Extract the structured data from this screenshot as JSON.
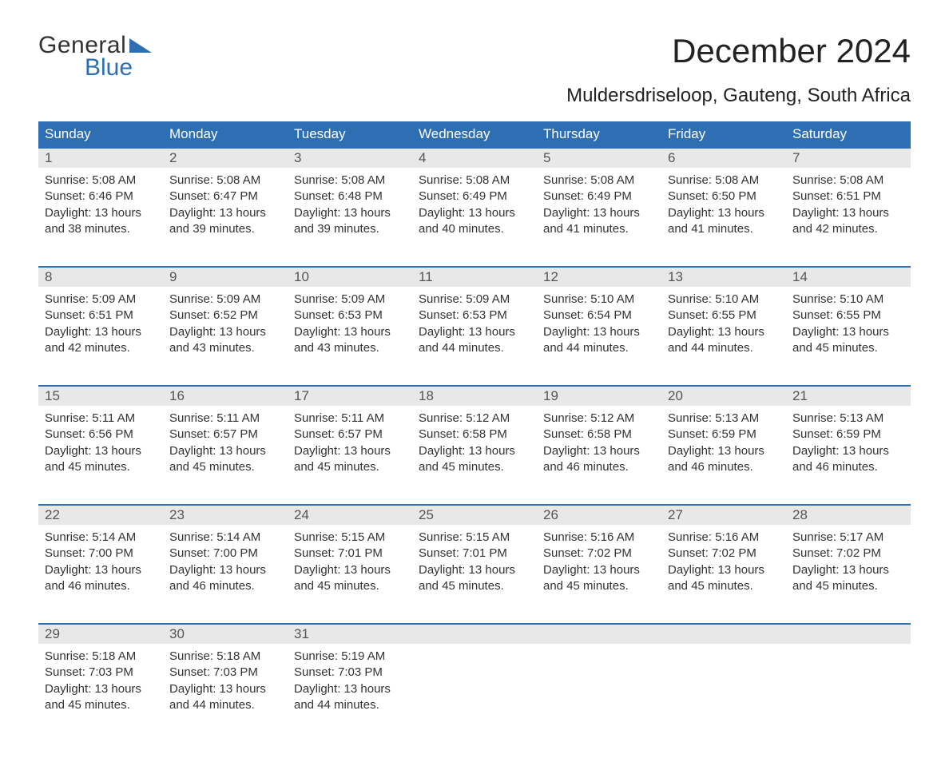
{
  "logo": {
    "line1": "General",
    "line2": "Blue"
  },
  "title": "December 2024",
  "subtitle": "Muldersdriseloop, Gauteng, South Africa",
  "colors": {
    "header_bg": "#2e6fb4",
    "header_text": "#ffffff",
    "daynum_bg": "#e8e8e8",
    "week_border": "#2e6fb4",
    "text": "#333333",
    "logo_blue": "#2e6fb4"
  },
  "typography": {
    "title_fontsize": 42,
    "subtitle_fontsize": 24,
    "header_fontsize": 17,
    "daynum_fontsize": 17,
    "cell_fontsize": 15,
    "logo_fontsize": 30
  },
  "day_names": [
    "Sunday",
    "Monday",
    "Tuesday",
    "Wednesday",
    "Thursday",
    "Friday",
    "Saturday"
  ],
  "weeks": [
    {
      "nums": [
        "1",
        "2",
        "3",
        "4",
        "5",
        "6",
        "7"
      ],
      "cells": [
        {
          "sunrise": "Sunrise: 5:08 AM",
          "sunset": "Sunset: 6:46 PM",
          "d1": "Daylight: 13 hours",
          "d2": "and 38 minutes."
        },
        {
          "sunrise": "Sunrise: 5:08 AM",
          "sunset": "Sunset: 6:47 PM",
          "d1": "Daylight: 13 hours",
          "d2": "and 39 minutes."
        },
        {
          "sunrise": "Sunrise: 5:08 AM",
          "sunset": "Sunset: 6:48 PM",
          "d1": "Daylight: 13 hours",
          "d2": "and 39 minutes."
        },
        {
          "sunrise": "Sunrise: 5:08 AM",
          "sunset": "Sunset: 6:49 PM",
          "d1": "Daylight: 13 hours",
          "d2": "and 40 minutes."
        },
        {
          "sunrise": "Sunrise: 5:08 AM",
          "sunset": "Sunset: 6:49 PM",
          "d1": "Daylight: 13 hours",
          "d2": "and 41 minutes."
        },
        {
          "sunrise": "Sunrise: 5:08 AM",
          "sunset": "Sunset: 6:50 PM",
          "d1": "Daylight: 13 hours",
          "d2": "and 41 minutes."
        },
        {
          "sunrise": "Sunrise: 5:08 AM",
          "sunset": "Sunset: 6:51 PM",
          "d1": "Daylight: 13 hours",
          "d2": "and 42 minutes."
        }
      ]
    },
    {
      "nums": [
        "8",
        "9",
        "10",
        "11",
        "12",
        "13",
        "14"
      ],
      "cells": [
        {
          "sunrise": "Sunrise: 5:09 AM",
          "sunset": "Sunset: 6:51 PM",
          "d1": "Daylight: 13 hours",
          "d2": "and 42 minutes."
        },
        {
          "sunrise": "Sunrise: 5:09 AM",
          "sunset": "Sunset: 6:52 PM",
          "d1": "Daylight: 13 hours",
          "d2": "and 43 minutes."
        },
        {
          "sunrise": "Sunrise: 5:09 AM",
          "sunset": "Sunset: 6:53 PM",
          "d1": "Daylight: 13 hours",
          "d2": "and 43 minutes."
        },
        {
          "sunrise": "Sunrise: 5:09 AM",
          "sunset": "Sunset: 6:53 PM",
          "d1": "Daylight: 13 hours",
          "d2": "and 44 minutes."
        },
        {
          "sunrise": "Sunrise: 5:10 AM",
          "sunset": "Sunset: 6:54 PM",
          "d1": "Daylight: 13 hours",
          "d2": "and 44 minutes."
        },
        {
          "sunrise": "Sunrise: 5:10 AM",
          "sunset": "Sunset: 6:55 PM",
          "d1": "Daylight: 13 hours",
          "d2": "and 44 minutes."
        },
        {
          "sunrise": "Sunrise: 5:10 AM",
          "sunset": "Sunset: 6:55 PM",
          "d1": "Daylight: 13 hours",
          "d2": "and 45 minutes."
        }
      ]
    },
    {
      "nums": [
        "15",
        "16",
        "17",
        "18",
        "19",
        "20",
        "21"
      ],
      "cells": [
        {
          "sunrise": "Sunrise: 5:11 AM",
          "sunset": "Sunset: 6:56 PM",
          "d1": "Daylight: 13 hours",
          "d2": "and 45 minutes."
        },
        {
          "sunrise": "Sunrise: 5:11 AM",
          "sunset": "Sunset: 6:57 PM",
          "d1": "Daylight: 13 hours",
          "d2": "and 45 minutes."
        },
        {
          "sunrise": "Sunrise: 5:11 AM",
          "sunset": "Sunset: 6:57 PM",
          "d1": "Daylight: 13 hours",
          "d2": "and 45 minutes."
        },
        {
          "sunrise": "Sunrise: 5:12 AM",
          "sunset": "Sunset: 6:58 PM",
          "d1": "Daylight: 13 hours",
          "d2": "and 45 minutes."
        },
        {
          "sunrise": "Sunrise: 5:12 AM",
          "sunset": "Sunset: 6:58 PM",
          "d1": "Daylight: 13 hours",
          "d2": "and 46 minutes."
        },
        {
          "sunrise": "Sunrise: 5:13 AM",
          "sunset": "Sunset: 6:59 PM",
          "d1": "Daylight: 13 hours",
          "d2": "and 46 minutes."
        },
        {
          "sunrise": "Sunrise: 5:13 AM",
          "sunset": "Sunset: 6:59 PM",
          "d1": "Daylight: 13 hours",
          "d2": "and 46 minutes."
        }
      ]
    },
    {
      "nums": [
        "22",
        "23",
        "24",
        "25",
        "26",
        "27",
        "28"
      ],
      "cells": [
        {
          "sunrise": "Sunrise: 5:14 AM",
          "sunset": "Sunset: 7:00 PM",
          "d1": "Daylight: 13 hours",
          "d2": "and 46 minutes."
        },
        {
          "sunrise": "Sunrise: 5:14 AM",
          "sunset": "Sunset: 7:00 PM",
          "d1": "Daylight: 13 hours",
          "d2": "and 46 minutes."
        },
        {
          "sunrise": "Sunrise: 5:15 AM",
          "sunset": "Sunset: 7:01 PM",
          "d1": "Daylight: 13 hours",
          "d2": "and 45 minutes."
        },
        {
          "sunrise": "Sunrise: 5:15 AM",
          "sunset": "Sunset: 7:01 PM",
          "d1": "Daylight: 13 hours",
          "d2": "and 45 minutes."
        },
        {
          "sunrise": "Sunrise: 5:16 AM",
          "sunset": "Sunset: 7:02 PM",
          "d1": "Daylight: 13 hours",
          "d2": "and 45 minutes."
        },
        {
          "sunrise": "Sunrise: 5:16 AM",
          "sunset": "Sunset: 7:02 PM",
          "d1": "Daylight: 13 hours",
          "d2": "and 45 minutes."
        },
        {
          "sunrise": "Sunrise: 5:17 AM",
          "sunset": "Sunset: 7:02 PM",
          "d1": "Daylight: 13 hours",
          "d2": "and 45 minutes."
        }
      ]
    },
    {
      "nums": [
        "29",
        "30",
        "31",
        "",
        "",
        "",
        ""
      ],
      "cells": [
        {
          "sunrise": "Sunrise: 5:18 AM",
          "sunset": "Sunset: 7:03 PM",
          "d1": "Daylight: 13 hours",
          "d2": "and 45 minutes."
        },
        {
          "sunrise": "Sunrise: 5:18 AM",
          "sunset": "Sunset: 7:03 PM",
          "d1": "Daylight: 13 hours",
          "d2": "and 44 minutes."
        },
        {
          "sunrise": "Sunrise: 5:19 AM",
          "sunset": "Sunset: 7:03 PM",
          "d1": "Daylight: 13 hours",
          "d2": "and 44 minutes."
        },
        null,
        null,
        null,
        null
      ]
    }
  ]
}
